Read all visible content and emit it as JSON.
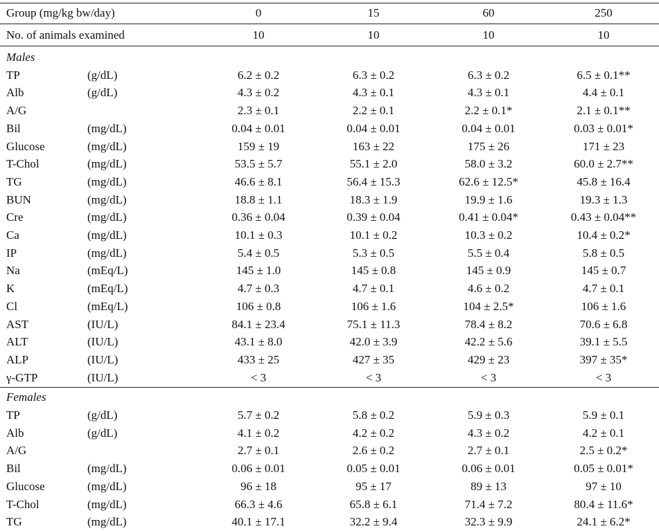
{
  "header": {
    "group_label": "Group (mg/kg bw/day)",
    "doses": [
      "0",
      "15",
      "60",
      "250"
    ],
    "animals_label": "No. of animals examined",
    "animals": [
      "10",
      "10",
      "10",
      "10"
    ]
  },
  "sections": [
    {
      "title": "Males",
      "rows": [
        {
          "name": "TP",
          "unit": "(g/dL)",
          "values": [
            "6.2 ± 0.2",
            "6.3 ± 0.2",
            "6.3 ± 0.2",
            "6.5 ± 0.1**"
          ]
        },
        {
          "name": "Alb",
          "unit": "(g/dL)",
          "values": [
            "4.3 ± 0.2",
            "4.3 ± 0.1",
            "4.3 ± 0.1",
            "4.4 ± 0.1"
          ]
        },
        {
          "name": "A/G",
          "unit": "",
          "values": [
            "2.3 ± 0.1",
            "2.2 ± 0.1",
            "2.2 ± 0.1*",
            "2.1 ± 0.1**"
          ]
        },
        {
          "name": "Bil",
          "unit": "(mg/dL)",
          "values": [
            "0.04 ± 0.01",
            "0.04 ± 0.01",
            "0.04 ± 0.01",
            "0.03 ± 0.01*"
          ]
        },
        {
          "name": "Glucose",
          "unit": "(mg/dL)",
          "values": [
            "159 ± 19",
            "163 ± 22",
            "175 ± 26",
            "171 ± 23"
          ]
        },
        {
          "name": "T-Chol",
          "unit": "(mg/dL)",
          "values": [
            "53.5 ± 5.7",
            "55.1 ± 2.0",
            "58.0 ± 3.2",
            "60.0 ± 2.7**"
          ]
        },
        {
          "name": "TG",
          "unit": "(mg/dL)",
          "values": [
            "46.6 ± 8.1",
            "56.4 ± 15.3",
            "62.6 ± 12.5*",
            "45.8 ± 16.4"
          ]
        },
        {
          "name": "BUN",
          "unit": "(mg/dL)",
          "values": [
            "18.8 ± 1.1",
            "18.3 ± 1.9",
            "19.9 ± 1.6",
            "19.3 ± 1.3"
          ]
        },
        {
          "name": "Cre",
          "unit": "(mg/dL)",
          "values": [
            "0.36 ± 0.04",
            "0.39 ± 0.04",
            "0.41 ± 0.04*",
            "0.43 ± 0.04**"
          ]
        },
        {
          "name": "Ca",
          "unit": "(mg/dL)",
          "values": [
            "10.1 ± 0.3",
            "10.1 ± 0.2",
            "10.3 ± 0.2",
            "10.4 ± 0.2*"
          ]
        },
        {
          "name": "IP",
          "unit": "(mg/dL)",
          "values": [
            "5.4 ± 0.5",
            "5.3 ± 0.5",
            "5.5 ± 0.4",
            "5.8 ± 0.5"
          ]
        },
        {
          "name": "Na",
          "unit": "(mEq/L)",
          "values": [
            "145 ± 1.0",
            "145 ± 0.8",
            "145 ± 0.9",
            "145 ± 0.7"
          ]
        },
        {
          "name": "K",
          "unit": "(mEq/L)",
          "values": [
            "4.7 ± 0.3",
            "4.7 ± 0.1",
            "4.6 ± 0.2",
            "4.7 ± 0.1"
          ]
        },
        {
          "name": "Cl",
          "unit": "(mEq/L)",
          "values": [
            "106 ± 0.8",
            "106 ± 1.6",
            "104 ± 2.5*",
            "106 ± 1.6"
          ]
        },
        {
          "name": "AST",
          "unit": "(IU/L)",
          "values": [
            "84.1 ± 23.4",
            "75.1 ± 11.3",
            "78.4 ± 8.2",
            "70.6 ± 6.8"
          ]
        },
        {
          "name": "ALT",
          "unit": "(IU/L)",
          "values": [
            "43.1 ± 8.0",
            "42.0 ± 3.9",
            "42.2 ± 5.6",
            "39.1 ± 5.5"
          ]
        },
        {
          "name": "ALP",
          "unit": "(IU/L)",
          "values": [
            "433 ± 25",
            "427 ± 35",
            "429 ± 23",
            "397 ± 35*"
          ]
        },
        {
          "name": "γ-GTP",
          "unit": "(IU/L)",
          "values": [
            "< 3",
            "< 3",
            "< 3",
            "< 3"
          ]
        }
      ]
    },
    {
      "title": "Females",
      "rows": [
        {
          "name": "TP",
          "unit": "(g/dL)",
          "values": [
            "5.7 ± 0.2",
            "5.8 ± 0.2",
            "5.9 ± 0.3",
            "5.9 ± 0.1"
          ]
        },
        {
          "name": "Alb",
          "unit": "(g/dL)",
          "values": [
            "4.1 ± 0.2",
            "4.2 ± 0.2",
            "4.3 ± 0.2",
            "4.2 ± 0.1"
          ]
        },
        {
          "name": "A/G",
          "unit": "",
          "values": [
            "2.7 ± 0.1",
            "2.6 ± 0.2",
            "2.7 ± 0.1",
            "2.5 ± 0.2*"
          ]
        },
        {
          "name": "Bil",
          "unit": "(mg/dL)",
          "values": [
            "0.06 ± 0.01",
            "0.05 ± 0.01",
            "0.06 ± 0.01",
            "0.05 ± 0.01*"
          ]
        },
        {
          "name": "Glucose",
          "unit": "(mg/dL)",
          "values": [
            "96 ± 18",
            "95 ± 17",
            "89 ± 13",
            "97 ± 10"
          ]
        },
        {
          "name": "T-Chol",
          "unit": "(mg/dL)",
          "values": [
            "66.3 ± 4.6",
            "65.8 ± 6.1",
            "71.4 ± 7.2",
            "80.4 ± 11.6*"
          ]
        },
        {
          "name": "TG",
          "unit": "(mg/dL)",
          "values": [
            "40.1 ± 17.1",
            "32.2 ± 9.4",
            "32.3 ± 9.9",
            "24.1 ± 6.2*"
          ]
        }
      ]
    }
  ]
}
